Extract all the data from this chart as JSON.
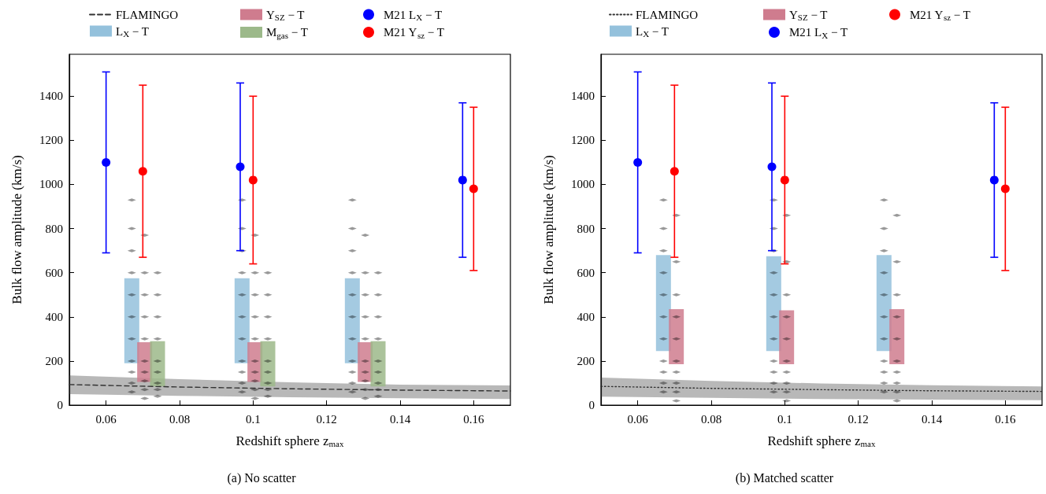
{
  "chart_data": [
    {
      "type": "scatter",
      "title": "(a) No scatter",
      "xlabel": "Redshift sphere z$_{max}$",
      "ylabel": "Bulk flow amplitude (km/s)",
      "xlim": [
        0.05,
        0.17
      ],
      "xticks": [
        0.06,
        0.08,
        0.1,
        0.12,
        0.14,
        0.16
      ],
      "ylim": [
        0,
        1590
      ],
      "yticks": [
        0,
        200,
        400,
        600,
        800,
        1000,
        1200,
        1400
      ],
      "legend": "top",
      "grid": false,
      "series": [
        {
          "type": "line",
          "name": "FLAMINGO",
          "color": "#333333",
          "line_style": "dashed",
          "x": [
            0.05,
            0.08,
            0.11,
            0.14,
            0.17
          ],
          "values": [
            93,
            82,
            74,
            68,
            64
          ],
          "lower": [
            50,
            42,
            36,
            31,
            28
          ],
          "upper": [
            135,
            118,
            103,
            93,
            89
          ]
        },
        {
          "type": "bar",
          "name": "L$_{X}$ − T",
          "color": "#94c1dc",
          "x": [
            0.067,
            0.097,
            0.127
          ],
          "base": [
            190,
            190,
            190
          ],
          "values": [
            385,
            385,
            385
          ]
        },
        {
          "type": "bar",
          "name": "Y$_{SZ}$ − T",
          "color": "#cf7c8e",
          "x": [
            0.0705,
            0.1005,
            0.1305
          ],
          "base": [
            105,
            105,
            105
          ],
          "values": [
            180,
            180,
            180
          ]
        },
        {
          "type": "bar",
          "name": "M$_{gas}$ − T",
          "color": "#9cb98a",
          "x": [
            0.074,
            0.104,
            0.134
          ],
          "base": [
            85,
            85,
            85
          ],
          "values": [
            205,
            205,
            205
          ]
        },
        {
          "color": "#000000",
          "marker": "diamond",
          "x": [
            0.067,
            0.067,
            0.067,
            0.067,
            0.067,
            0.067,
            0.067,
            0.067,
            0.067,
            0.067,
            0.067,
            0.0705,
            0.0705,
            0.0705,
            0.0705,
            0.0705,
            0.0705,
            0.0705,
            0.0705,
            0.0705,
            0.0705,
            0.074,
            0.074,
            0.074,
            0.074,
            0.074,
            0.074,
            0.074,
            0.074,
            0.074,
            0.097,
            0.097,
            0.097,
            0.097,
            0.097,
            0.097,
            0.097,
            0.097,
            0.097,
            0.097,
            0.097,
            0.1005,
            0.1005,
            0.1005,
            0.1005,
            0.1005,
            0.1005,
            0.1005,
            0.1005,
            0.1005,
            0.1005,
            0.104,
            0.104,
            0.104,
            0.104,
            0.104,
            0.104,
            0.104,
            0.104,
            0.104,
            0.127,
            0.127,
            0.127,
            0.127,
            0.127,
            0.127,
            0.127,
            0.127,
            0.127,
            0.127,
            0.127,
            0.1305,
            0.1305,
            0.1305,
            0.1305,
            0.1305,
            0.1305,
            0.1305,
            0.1305,
            0.1305,
            0.1305,
            0.134,
            0.134,
            0.134,
            0.134,
            0.134,
            0.134,
            0.134,
            0.134,
            0.134
          ],
          "values": [
            60,
            100,
            150,
            200,
            300,
            400,
            500,
            600,
            700,
            800,
            930,
            30,
            70,
            110,
            150,
            200,
            300,
            400,
            500,
            600,
            770,
            40,
            70,
            100,
            150,
            200,
            300,
            400,
            500,
            600,
            60,
            100,
            150,
            200,
            300,
            400,
            500,
            600,
            700,
            800,
            930,
            30,
            70,
            110,
            150,
            200,
            300,
            400,
            500,
            600,
            770,
            40,
            70,
            100,
            150,
            200,
            300,
            400,
            500,
            600,
            60,
            100,
            150,
            200,
            300,
            400,
            500,
            600,
            700,
            800,
            930,
            30,
            70,
            110,
            150,
            200,
            300,
            400,
            500,
            600,
            770,
            40,
            70,
            100,
            150,
            200,
            300,
            400,
            500,
            600
          ]
        },
        {
          "name": "M21 L$_{X}$ − T",
          "color": "#0000ff",
          "marker": "circle",
          "x": [
            0.06,
            0.0965,
            0.157
          ],
          "values": [
            1100,
            1080,
            1020
          ],
          "errors": [
            [
              690,
              1510
            ],
            [
              700,
              1460
            ],
            [
              670,
              1370
            ]
          ]
        },
        {
          "name": "M21 Y$_{sz}$ − T",
          "color": "#ff0000",
          "marker": "circle",
          "x": [
            0.07,
            0.1,
            0.16
          ],
          "values": [
            1060,
            1020,
            980
          ],
          "errors": [
            [
              670,
              1450
            ],
            [
              640,
              1400
            ],
            [
              610,
              1350
            ]
          ]
        }
      ]
    },
    {
      "type": "scatter",
      "title": "(b) Matched scatter",
      "xlabel": "Redshift sphere z$_{max}$",
      "ylabel": "Bulk flow amplitude (km/s)",
      "xlim": [
        0.05,
        0.17
      ],
      "xticks": [
        0.06,
        0.08,
        0.1,
        0.12,
        0.14,
        0.16
      ],
      "ylim": [
        0,
        1590
      ],
      "yticks": [
        0,
        200,
        400,
        600,
        800,
        1000,
        1200,
        1400
      ],
      "legend": "top",
      "grid": false,
      "series": [
        {
          "type": "line",
          "name": "FLAMINGO",
          "color": "#333333",
          "line_style": "dotted",
          "x": [
            0.05,
            0.08,
            0.11,
            0.14,
            0.17
          ],
          "values": [
            85,
            76,
            70,
            65,
            62
          ],
          "lower": [
            38,
            33,
            28,
            25,
            22
          ],
          "upper": [
            125,
            110,
            98,
            90,
            85
          ]
        },
        {
          "type": "bar",
          "name": "L$_{X}$ − T",
          "color": "#94c1dc",
          "x": [
            0.067,
            0.097,
            0.127
          ],
          "base": [
            245,
            245,
            245
          ],
          "values": [
            435,
            430,
            435
          ]
        },
        {
          "type": "bar",
          "name": "Y$_{SZ}$ − T",
          "color": "#cf7c8e",
          "x": [
            0.0705,
            0.1005,
            0.1305
          ],
          "base": [
            185,
            185,
            185
          ],
          "values": [
            250,
            245,
            250
          ]
        },
        {
          "color": "#000000",
          "marker": "diamond",
          "x": [
            0.067,
            0.067,
            0.067,
            0.067,
            0.067,
            0.067,
            0.067,
            0.067,
            0.067,
            0.067,
            0.067,
            0.0705,
            0.0705,
            0.0705,
            0.0705,
            0.0705,
            0.0705,
            0.0705,
            0.0705,
            0.0705,
            0.0705,
            0.097,
            0.097,
            0.097,
            0.097,
            0.097,
            0.097,
            0.097,
            0.097,
            0.097,
            0.097,
            0.097,
            0.1005,
            0.1005,
            0.1005,
            0.1005,
            0.1005,
            0.1005,
            0.1005,
            0.1005,
            0.1005,
            0.1005,
            0.127,
            0.127,
            0.127,
            0.127,
            0.127,
            0.127,
            0.127,
            0.127,
            0.127,
            0.127,
            0.127,
            0.1305,
            0.1305,
            0.1305,
            0.1305,
            0.1305,
            0.1305,
            0.1305,
            0.1305,
            0.1305,
            0.1305
          ],
          "values": [
            60,
            100,
            150,
            200,
            300,
            400,
            500,
            600,
            700,
            800,
            930,
            20,
            60,
            100,
            150,
            200,
            300,
            400,
            500,
            650,
            860,
            60,
            100,
            150,
            200,
            300,
            400,
            500,
            600,
            700,
            800,
            930,
            20,
            60,
            100,
            150,
            200,
            300,
            400,
            500,
            650,
            860,
            60,
            100,
            150,
            200,
            300,
            400,
            500,
            600,
            700,
            800,
            930,
            20,
            60,
            100,
            150,
            200,
            300,
            400,
            500,
            650,
            860
          ]
        },
        {
          "name": "M21 L$_{X}$ − T",
          "color": "#0000ff",
          "marker": "circle",
          "x": [
            0.06,
            0.0965,
            0.157
          ],
          "values": [
            1100,
            1080,
            1020
          ],
          "errors": [
            [
              690,
              1510
            ],
            [
              700,
              1460
            ],
            [
              670,
              1370
            ]
          ]
        },
        {
          "name": "M21 Y$_{sz}$ − T",
          "color": "#ff0000",
          "marker": "circle",
          "x": [
            0.07,
            0.1,
            0.16
          ],
          "values": [
            1060,
            1020,
            980
          ],
          "errors": [
            [
              670,
              1450
            ],
            [
              640,
              1400
            ],
            [
              610,
              1350
            ]
          ]
        }
      ]
    }
  ]
}
